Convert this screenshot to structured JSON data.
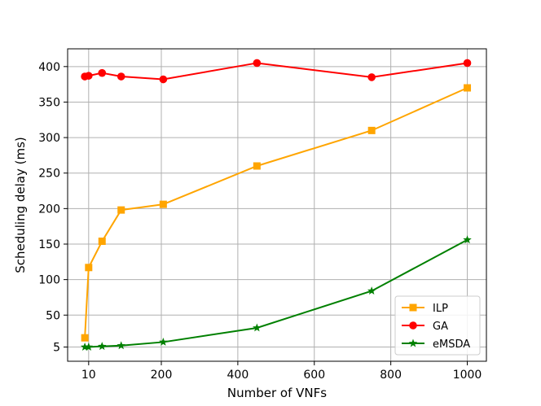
{
  "chart_data": {
    "type": "line",
    "xlabel": "Number of VNFs",
    "ylabel": "Scheduling delay (ms)",
    "xlim": [
      -45,
      1050
    ],
    "ylim": [
      -15,
      425
    ],
    "xticks": [
      10,
      200,
      400,
      600,
      800,
      1000
    ],
    "yticks": [
      5,
      50,
      100,
      150,
      200,
      250,
      300,
      350,
      400
    ],
    "grid": true,
    "legend_position": "bottom-right",
    "series": [
      {
        "name": "ILP",
        "color": "#FFA500",
        "marker": "square",
        "x": [
          0,
          10,
          45,
          95,
          205,
          450,
          750,
          1000
        ],
        "y": [
          18,
          117,
          154,
          198,
          206,
          260,
          310,
          370
        ]
      },
      {
        "name": "GA",
        "color": "#FF0000",
        "marker": "circle",
        "x": [
          0,
          10,
          45,
          95,
          205,
          450,
          750,
          1000
        ],
        "y": [
          386,
          387,
          391,
          386,
          382,
          405,
          385,
          405
        ]
      },
      {
        "name": "eMSDA",
        "color": "#008000",
        "marker": "star",
        "x": [
          0,
          10,
          45,
          95,
          205,
          450,
          750,
          1000
        ],
        "y": [
          5,
          5,
          6,
          7,
          12,
          32,
          84,
          156
        ]
      }
    ]
  }
}
